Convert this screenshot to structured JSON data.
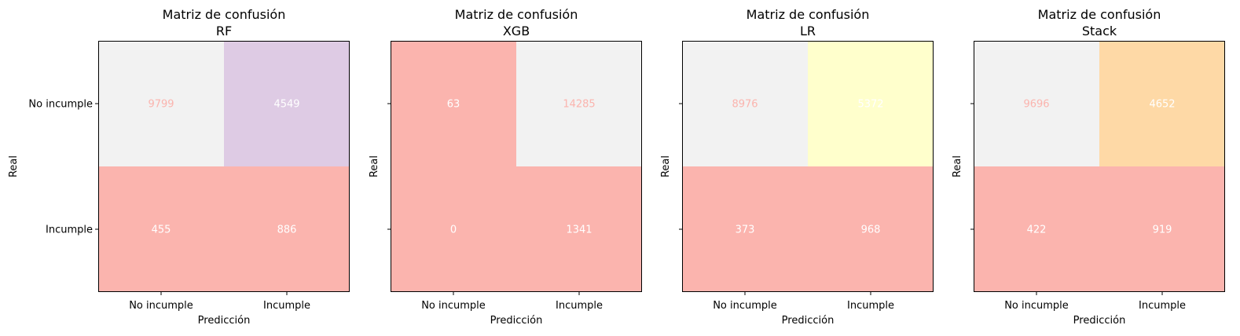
{
  "chart_data": [
    {
      "type": "heatmap",
      "title": "Matriz de confusión\nRF",
      "xlabel": "Predicción",
      "ylabel": "Real",
      "x_categories": [
        "No incumple",
        "Incumple"
      ],
      "y_categories": [
        "No incumple",
        "Incumple"
      ],
      "values": [
        [
          9799,
          4549
        ],
        [
          455,
          886
        ]
      ],
      "cell_colors": [
        [
          "#f2f2f2",
          "#decbe4"
        ],
        [
          "#fbb4ae",
          "#fbb4ae"
        ]
      ],
      "show_ytick_labels": true
    },
    {
      "type": "heatmap",
      "title": "Matriz de confusión\nXGB",
      "xlabel": "Predicción",
      "ylabel": "Real",
      "x_categories": [
        "No incumple",
        "Incumple"
      ],
      "y_categories": [
        "No incumple",
        "Incumple"
      ],
      "values": [
        [
          63,
          14285
        ],
        [
          0,
          1341
        ]
      ],
      "cell_colors": [
        [
          "#fbb4ae",
          "#f2f2f2"
        ],
        [
          "#fbb4ae",
          "#fbb4ae"
        ]
      ],
      "show_ytick_labels": false
    },
    {
      "type": "heatmap",
      "title": "Matriz de confusión\nLR",
      "xlabel": "Predicción",
      "ylabel": "Real",
      "x_categories": [
        "No incumple",
        "Incumple"
      ],
      "y_categories": [
        "No incumple",
        "Incumple"
      ],
      "values": [
        [
          8976,
          5372
        ],
        [
          373,
          968
        ]
      ],
      "cell_colors": [
        [
          "#f2f2f2",
          "#ffffcc"
        ],
        [
          "#fbb4ae",
          "#fbb4ae"
        ]
      ],
      "show_ytick_labels": false
    },
    {
      "type": "heatmap",
      "title": "Matriz de confusión\nStack",
      "xlabel": "Predicción",
      "ylabel": "Real",
      "x_categories": [
        "No incumple",
        "Incumple"
      ],
      "y_categories": [
        "No incumple",
        "Incumple"
      ],
      "values": [
        [
          9696,
          4652
        ],
        [
          422,
          919
        ]
      ],
      "cell_colors": [
        [
          "#f2f2f2",
          "#fed9a6"
        ],
        [
          "#fbb4ae",
          "#fbb4ae"
        ]
      ],
      "show_ytick_labels": false
    }
  ],
  "colors": {
    "text_on_light": "#fbb4ae",
    "text_on_dark": "#ffffff"
  }
}
